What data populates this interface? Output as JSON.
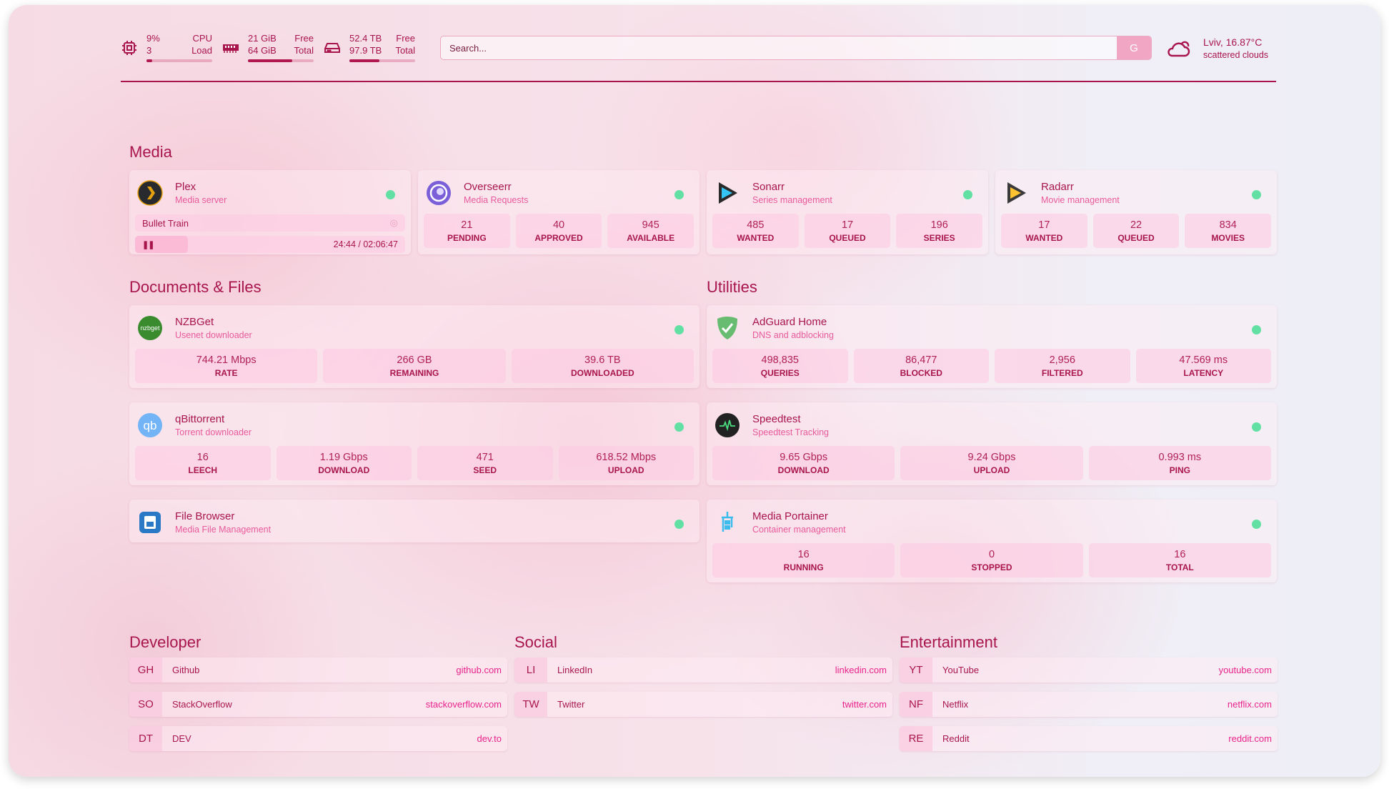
{
  "resources": {
    "cpu": {
      "icon": "cpu-icon",
      "value": "9%",
      "value2": "3",
      "label": "CPU",
      "label2": "Load",
      "percent": 9
    },
    "memory": {
      "icon": "memory-icon",
      "value": "21 GiB",
      "value2": "64 GiB",
      "label": "Free",
      "label2": "Total",
      "percent": 67
    },
    "disk": {
      "icon": "disk-icon",
      "value": "52.4 TB",
      "value2": "97.9 TB",
      "label": "Free",
      "label2": "Total",
      "percent": 46
    }
  },
  "search": {
    "placeholder": "Search...",
    "provider_label": "G"
  },
  "weather": {
    "icon": "cloud-icon",
    "location_temp": "Lviv, 16.87°C",
    "condition": "scattered clouds"
  },
  "sections": {
    "media": "Media",
    "documents": "Documents & Files",
    "utilities": "Utilities",
    "developer": "Developer",
    "social": "Social",
    "entertainment": "Entertainment"
  },
  "colors": {
    "accent": "#a8154d",
    "status_online": "#62e0a4",
    "description": "#e85a9b"
  },
  "media": [
    {
      "name": "Plex",
      "desc": "Media server",
      "icon": "plex-icon",
      "now_playing": {
        "title": "Bullet Train",
        "time": "24:44 / 02:06:47",
        "progress_percent": 19.5
      }
    },
    {
      "name": "Overseerr",
      "desc": "Media Requests",
      "icon": "overseerr-icon",
      "stats": [
        {
          "v": "21",
          "l": "PENDING"
        },
        {
          "v": "40",
          "l": "APPROVED"
        },
        {
          "v": "945",
          "l": "AVAILABLE"
        }
      ]
    },
    {
      "name": "Sonarr",
      "desc": "Series management",
      "icon": "sonarr-icon",
      "stats": [
        {
          "v": "485",
          "l": "WANTED"
        },
        {
          "v": "17",
          "l": "QUEUED"
        },
        {
          "v": "196",
          "l": "SERIES"
        }
      ]
    },
    {
      "name": "Radarr",
      "desc": "Movie management",
      "icon": "radarr-icon",
      "stats": [
        {
          "v": "17",
          "l": "WANTED"
        },
        {
          "v": "22",
          "l": "QUEUED"
        },
        {
          "v": "834",
          "l": "MOVIES"
        }
      ]
    }
  ],
  "documents": [
    {
      "name": "NZBGet",
      "desc": "Usenet downloader",
      "icon": "nzbget-icon",
      "icon_text": "nzbget",
      "stats": [
        {
          "v": "744.21 Mbps",
          "l": "RATE"
        },
        {
          "v": "266 GB",
          "l": "REMAINING"
        },
        {
          "v": "39.6 TB",
          "l": "DOWNLOADED"
        }
      ]
    },
    {
      "name": "qBittorrent",
      "desc": "Torrent downloader",
      "icon": "qbittorrent-icon",
      "icon_text": "qb",
      "stats": [
        {
          "v": "16",
          "l": "LEECH"
        },
        {
          "v": "1.19 Gbps",
          "l": "DOWNLOAD"
        },
        {
          "v": "471",
          "l": "SEED"
        },
        {
          "v": "618.52 Mbps",
          "l": "UPLOAD"
        }
      ]
    },
    {
      "name": "File Browser",
      "desc": "Media File Management",
      "icon": "file-browser-icon"
    }
  ],
  "utilities": [
    {
      "name": "AdGuard Home",
      "desc": "DNS and adblocking",
      "icon": "adguard-icon",
      "stats": [
        {
          "v": "498,835",
          "l": "QUERIES"
        },
        {
          "v": "86,477",
          "l": "BLOCKED"
        },
        {
          "v": "2,956",
          "l": "FILTERED"
        },
        {
          "v": "47.569 ms",
          "l": "LATENCY"
        }
      ]
    },
    {
      "name": "Speedtest",
      "desc": "Speedtest Tracking",
      "icon": "speedtest-icon",
      "stats": [
        {
          "v": "9.65 Gbps",
          "l": "DOWNLOAD"
        },
        {
          "v": "9.24 Gbps",
          "l": "UPLOAD"
        },
        {
          "v": "0.993 ms",
          "l": "PING"
        }
      ]
    },
    {
      "name": "Media Portainer",
      "desc": "Container management",
      "icon": "portainer-icon",
      "stats": [
        {
          "v": "16",
          "l": "RUNNING"
        },
        {
          "v": "0",
          "l": "STOPPED"
        },
        {
          "v": "16",
          "l": "TOTAL"
        }
      ]
    }
  ],
  "bookmarks": {
    "developer": [
      {
        "abbr": "GH",
        "name": "Github",
        "url": "github.com"
      },
      {
        "abbr": "SO",
        "name": "StackOverflow",
        "url": "stackoverflow.com"
      },
      {
        "abbr": "DT",
        "name": "DEV",
        "url": "dev.to"
      }
    ],
    "social": [
      {
        "abbr": "LI",
        "name": "LinkedIn",
        "url": "linkedin.com"
      },
      {
        "abbr": "TW",
        "name": "Twitter",
        "url": "twitter.com"
      }
    ],
    "entertainment": [
      {
        "abbr": "YT",
        "name": "YouTube",
        "url": "youtube.com"
      },
      {
        "abbr": "NF",
        "name": "Netflix",
        "url": "netflix.com"
      },
      {
        "abbr": "RE",
        "name": "Reddit",
        "url": "reddit.com"
      }
    ]
  }
}
